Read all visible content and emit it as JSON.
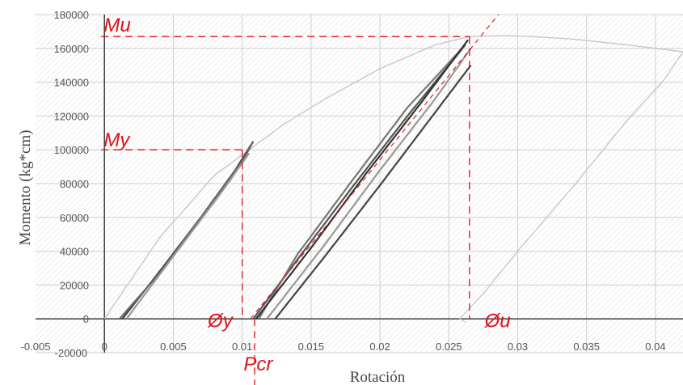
{
  "chart_data": {
    "type": "line",
    "title": "",
    "xlabel": "Rotación",
    "ylabel": "Momento (kg*cm)",
    "xlim": [
      -0.005,
      0.042
    ],
    "ylim": [
      -20000,
      180000
    ],
    "x_ticks": [
      "-0.005",
      "0",
      "0.005",
      "0.01",
      "0.015",
      "0.02",
      "0.025",
      "0.03",
      "0.035",
      "0.04"
    ],
    "x_tick_values": [
      -0.005,
      0,
      0.005,
      0.01,
      0.015,
      0.02,
      0.025,
      0.03,
      0.035,
      0.04
    ],
    "y_ticks": [
      "-20000",
      "0",
      "20000",
      "40000",
      "60000",
      "80000",
      "100000",
      "120000",
      "140000",
      "160000",
      "180000"
    ],
    "y_tick_values": [
      -20000,
      0,
      20000,
      40000,
      60000,
      80000,
      100000,
      120000,
      140000,
      160000,
      180000
    ],
    "grid": true,
    "series": [
      {
        "color": "#c8c8c8",
        "x": [
          0,
          0.004,
          0.008,
          0.0105,
          0.013,
          0.016,
          0.02,
          0.024,
          0.0265,
          0.029,
          0.031,
          0.034,
          0.038,
          0.042
        ],
        "y": [
          0,
          48000,
          85000,
          100000,
          115000,
          130000,
          148000,
          162000,
          167000,
          167500,
          167000,
          165500,
          162000,
          158000
        ]
      },
      {
        "color": "#c8c8c8",
        "x": [
          0.0258,
          0.0275,
          0.03,
          0.034,
          0.038,
          0.0405,
          0.042
        ],
        "y": [
          0,
          15000,
          40000,
          78000,
          118000,
          140000,
          158000
        ]
      },
      {
        "color": "#d0d0d0",
        "x": [
          0.0258,
          0.0262
        ],
        "y": [
          0,
          -2000
        ]
      },
      {
        "color": "#444444",
        "x": [
          0.0013,
          0.004,
          0.007,
          0.0095,
          0.0108
        ],
        "y": [
          0,
          28000,
          60000,
          88000,
          105000
        ]
      },
      {
        "color": "#666666",
        "x": [
          0.0108,
          0.01,
          0.007,
          0.004,
          0.0011
        ],
        "y": [
          105000,
          93000,
          60000,
          27000,
          0
        ]
      },
      {
        "color": "#999999",
        "x": [
          0.0016,
          0.005,
          0.0085,
          0.0105
        ],
        "y": [
          0,
          37000,
          75000,
          98000
        ]
      },
      {
        "color": "#555555",
        "x": [
          0.0108,
          0.014,
          0.018,
          0.022,
          0.0262
        ],
        "y": [
          0,
          35000,
          78000,
          120000,
          162000
        ]
      },
      {
        "color": "#777777",
        "x": [
          0.0262,
          0.022,
          0.018,
          0.014,
          0.0112
        ],
        "y": [
          162000,
          125000,
          82000,
          38000,
          0
        ]
      },
      {
        "color": "#333333",
        "x": [
          0.011,
          0.015,
          0.019,
          0.023,
          0.0264
        ],
        "y": [
          0,
          42000,
          86000,
          128000,
          165000
        ]
      },
      {
        "color": "#999999",
        "x": [
          0.0118,
          0.016,
          0.02,
          0.024,
          0.0266
        ],
        "y": [
          0,
          44000,
          88000,
          130000,
          160000
        ]
      },
      {
        "color": "#444444",
        "x": [
          0.0124,
          0.016,
          0.02,
          0.024,
          0.0266
        ],
        "y": [
          0,
          37000,
          79000,
          122000,
          150000
        ]
      }
    ],
    "reference_lines": [
      {
        "label": "Mu",
        "x": 0.0265,
        "y": 167000
      },
      {
        "label": "My",
        "x": 0.01,
        "y": 100000
      }
    ],
    "annotations": [
      {
        "text": "Mu",
        "x": -5e-05,
        "y": 170000
      },
      {
        "text": "My",
        "x": -5e-05,
        "y": 102000
      },
      {
        "text": "Øy",
        "x": 0.0075,
        "y": -5000
      },
      {
        "text": "Øu",
        "x": 0.0276,
        "y": -5000
      },
      {
        "text": "Pcr",
        "x": 0.0101,
        "y": -30500
      }
    ],
    "fit_line": {
      "x": [
        0.0106,
        0.0286
      ],
      "y": [
        0,
        180000
      ]
    },
    "pcr_marker": {
      "x": 0.0109
    }
  }
}
